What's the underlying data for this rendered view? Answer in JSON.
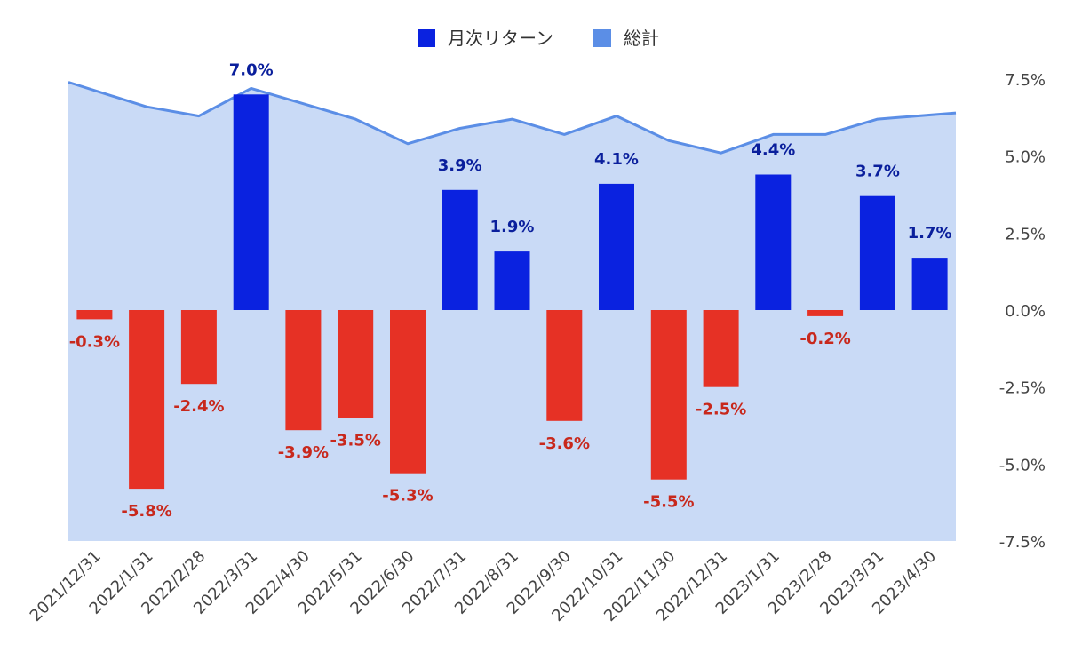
{
  "chart_data": {
    "type": "bar",
    "categories": [
      "2021/12/31",
      "2022/1/31",
      "2022/2/28",
      "2022/3/31",
      "2022/4/30",
      "2022/5/31",
      "2022/6/30",
      "2022/7/31",
      "2022/8/31",
      "2022/9/30",
      "2022/10/31",
      "2022/11/30",
      "2022/12/31",
      "2023/1/31",
      "2023/2/28",
      "2023/3/31",
      "2023/4/30"
    ],
    "series": [
      {
        "name": "月次リターン",
        "kind": "bar",
        "values": [
          -0.3,
          -5.8,
          -2.4,
          7.0,
          -3.9,
          -3.5,
          -5.3,
          3.9,
          1.9,
          -3.6,
          4.1,
          -5.5,
          -2.5,
          4.4,
          -0.2,
          3.7,
          1.7
        ],
        "data_labels": [
          "-0.3%",
          "-5.8%",
          "-2.4%",
          "7.0%",
          "-3.9%",
          "-3.5%",
          "-5.3%",
          "3.9%",
          "1.9%",
          "-3.6%",
          "4.1%",
          "-5.5%",
          "-2.5%",
          "4.4%",
          "-0.2%",
          "3.7%",
          "1.7%"
        ],
        "positive_color": "#0a22e0",
        "negative_color": "#e63125",
        "positive_label_color": "#0a1f9c",
        "negative_label_color": "#c8281c"
      },
      {
        "name": "総計",
        "kind": "area",
        "values": [
          7.4,
          6.6,
          6.3,
          7.2,
          6.7,
          6.2,
          5.4,
          5.9,
          6.2,
          5.7,
          6.3,
          5.5,
          5.1,
          5.7,
          5.7,
          6.2,
          6.4
        ],
        "line_color": "#5b8ee6",
        "fill_color": "#c9daf6"
      }
    ],
    "y_axis": {
      "position": "right",
      "ylim": [
        -7.5,
        7.5
      ],
      "ticks": [
        7.5,
        5.0,
        2.5,
        0.0,
        -2.5,
        -5.0,
        -7.5
      ],
      "tick_labels": [
        "7.5%",
        "5.0%",
        "2.5%",
        "0.0%",
        "-2.5%",
        "-5.0%",
        "-7.5%"
      ]
    },
    "legend": {
      "position": "top-center",
      "items": [
        {
          "label": "月次リターン",
          "color": "#0a22e0"
        },
        {
          "label": "総計",
          "color": "#5b8ee6"
        }
      ]
    },
    "grid": false
  }
}
